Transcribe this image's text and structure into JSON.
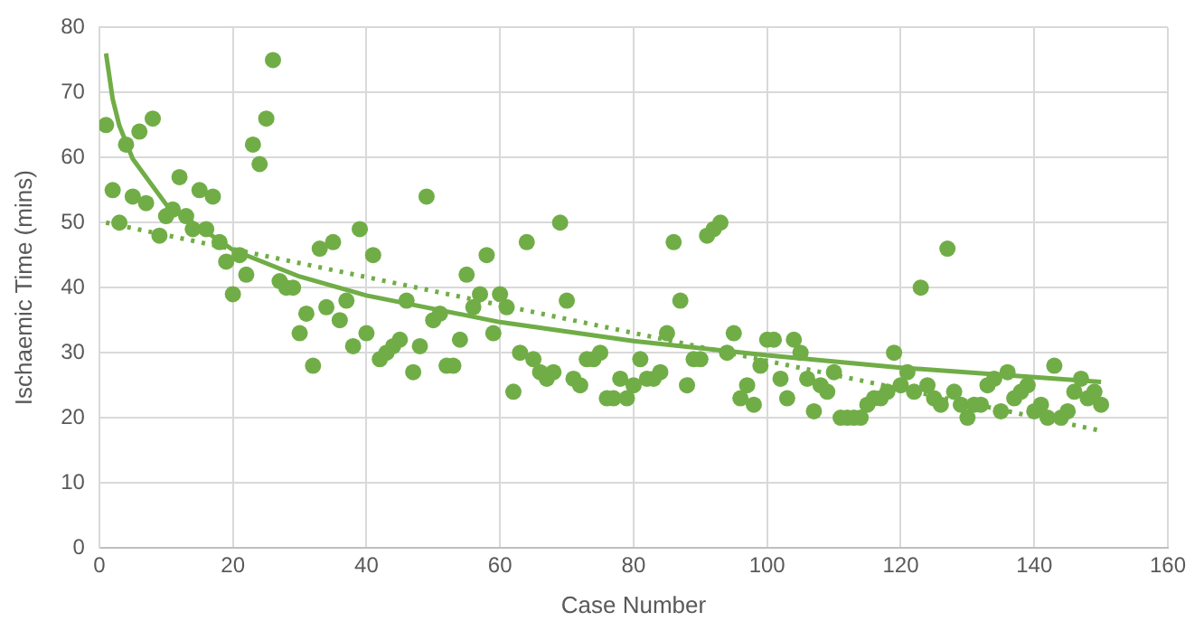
{
  "chart_data": {
    "type": "scatter",
    "xlabel": "Case Number",
    "ylabel": "Ischaemic Time (mins)",
    "xlim": [
      0,
      160
    ],
    "xticks": [
      0,
      20,
      40,
      60,
      80,
      100,
      120,
      140,
      160
    ],
    "ylim": [
      0,
      80
    ],
    "yticks": [
      0,
      10,
      20,
      30,
      40,
      50,
      60,
      70,
      80
    ],
    "grid": true,
    "legend": false,
    "marker": "circle",
    "x": [
      1,
      2,
      3,
      4,
      5,
      6,
      7,
      8,
      9,
      10,
      11,
      12,
      13,
      14,
      15,
      16,
      17,
      18,
      19,
      20,
      21,
      22,
      23,
      24,
      25,
      26,
      27,
      28,
      29,
      30,
      31,
      32,
      33,
      34,
      35,
      36,
      37,
      38,
      39,
      40,
      41,
      42,
      43,
      44,
      45,
      46,
      47,
      48,
      49,
      50,
      51,
      52,
      53,
      54,
      55,
      56,
      57,
      58,
      59,
      60,
      61,
      62,
      63,
      64,
      65,
      66,
      67,
      68,
      69,
      70,
      71,
      72,
      73,
      74,
      75,
      76,
      77,
      78,
      79,
      80,
      81,
      82,
      83,
      84,
      85,
      86,
      87,
      88,
      89,
      90,
      91,
      92,
      93,
      94,
      95,
      96,
      97,
      98,
      99,
      100,
      101,
      102,
      103,
      104,
      105,
      106,
      107,
      108,
      109,
      110,
      111,
      112,
      113,
      114,
      115,
      116,
      117,
      118,
      119,
      120,
      121,
      122,
      123,
      124,
      125,
      126,
      127,
      128,
      129,
      130,
      131,
      132,
      133,
      134,
      135,
      136,
      137,
      138,
      139,
      140,
      141,
      142,
      143,
      144,
      145,
      146,
      147,
      148,
      149,
      150
    ],
    "series": [
      {
        "type": "scatter",
        "color": "#70ad47",
        "values": [
          65,
          55,
          50,
          62,
          54,
          64,
          53,
          66,
          48,
          51,
          52,
          57,
          51,
          49,
          55,
          49,
          54,
          47,
          44,
          39,
          45,
          42,
          62,
          59,
          66,
          75,
          41,
          40,
          40,
          33,
          36,
          28,
          46,
          37,
          47,
          35,
          38,
          31,
          49,
          33,
          45,
          29,
          30,
          31,
          32,
          38,
          27,
          31,
          54,
          35,
          36,
          28,
          28,
          32,
          42,
          37,
          39,
          45,
          33,
          39,
          37,
          24,
          30,
          47,
          29,
          27,
          26,
          27,
          50,
          38,
          26,
          25,
          29,
          29,
          30,
          23,
          23,
          26,
          23,
          25,
          29,
          26,
          26,
          27,
          33,
          47,
          38,
          25,
          29,
          29,
          48,
          49,
          50,
          30,
          33,
          23,
          25,
          22,
          28,
          32,
          32,
          26,
          23,
          32,
          30,
          26,
          21,
          25,
          24,
          27,
          20,
          20,
          20,
          20,
          22,
          23,
          23,
          24,
          30,
          25,
          27,
          24,
          40,
          25,
          23,
          22,
          46,
          24,
          22,
          20,
          22,
          22,
          25,
          26,
          21,
          27,
          23,
          24,
          25,
          21,
          22,
          20,
          28,
          20,
          21,
          24,
          26,
          23,
          24,
          22
        ]
      },
      {
        "type": "line",
        "color": "#70ad47",
        "line_style": "solid",
        "marker": "none",
        "x": [
          1,
          2,
          3,
          5,
          10,
          20,
          30,
          40,
          60,
          80,
          100,
          120,
          150
        ],
        "values": [
          76,
          69,
          64.9,
          59.8,
          52.8,
          45.8,
          41.7,
          38.8,
          34.7,
          31.8,
          29.6,
          27.7,
          25.5
        ]
      },
      {
        "type": "line",
        "color": "#70ad47",
        "line_style": "dotted",
        "marker": "none",
        "x": [
          1,
          150
        ],
        "values": [
          50,
          18
        ]
      }
    ]
  }
}
